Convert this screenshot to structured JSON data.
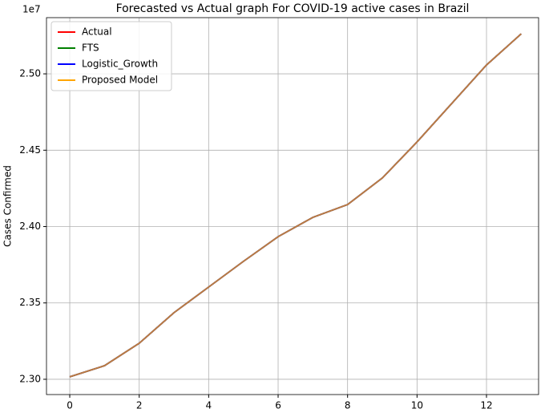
{
  "chart_data": {
    "type": "line",
    "title": "Forecasted vs Actual graph For COVID-19 active cases in Brazil",
    "y_label": "Cases Confirmed",
    "y_offset_label": "1e7",
    "x": [
      0,
      1,
      2,
      3,
      4,
      5,
      6,
      7,
      8,
      9,
      10,
      11,
      12,
      13
    ],
    "series": [
      {
        "name": "Actual",
        "color": "#ff0000",
        "values": [
          2.3016,
          2.3089,
          2.3236,
          2.3436,
          2.3604,
          2.3772,
          2.3934,
          2.406,
          2.4144,
          2.4318,
          2.4554,
          2.4806,
          2.5058,
          2.5262
        ]
      },
      {
        "name": "FTS",
        "color": "#008000",
        "values": [
          2.3016,
          2.3089,
          2.3236,
          2.3436,
          2.3604,
          2.3772,
          2.3934,
          2.406,
          2.4144,
          2.4318,
          2.4554,
          2.4806,
          2.5058,
          2.5262
        ]
      },
      {
        "name": "Logistic_Growth",
        "color": "#0000ff",
        "values": [
          2.3016,
          2.3089,
          2.3236,
          2.3436,
          2.3604,
          2.3772,
          2.3934,
          2.406,
          2.4144,
          2.4318,
          2.4554,
          2.4806,
          2.5058,
          2.5262
        ]
      },
      {
        "name": "Proposed Model",
        "color": "#ffa500",
        "values": [
          2.3016,
          2.3089,
          2.3236,
          2.3436,
          2.3604,
          2.3772,
          2.3934,
          2.406,
          2.4144,
          2.4318,
          2.4554,
          2.4806,
          2.5058,
          2.5262
        ]
      }
    ],
    "xlim": [
      -0.67,
      13.5
    ],
    "xticks": [
      0,
      2,
      4,
      6,
      8,
      10,
      12
    ],
    "ylim": [
      2.29,
      2.5368
    ],
    "yticks": [
      {
        "value": 2.3,
        "label": "2.30"
      },
      {
        "value": 2.35,
        "label": "2.35"
      },
      {
        "value": 2.4,
        "label": "2.40"
      },
      {
        "value": 2.45,
        "label": "2.45"
      },
      {
        "value": 2.5,
        "label": "2.50"
      }
    ],
    "grid": true,
    "legend": "upper-left"
  }
}
